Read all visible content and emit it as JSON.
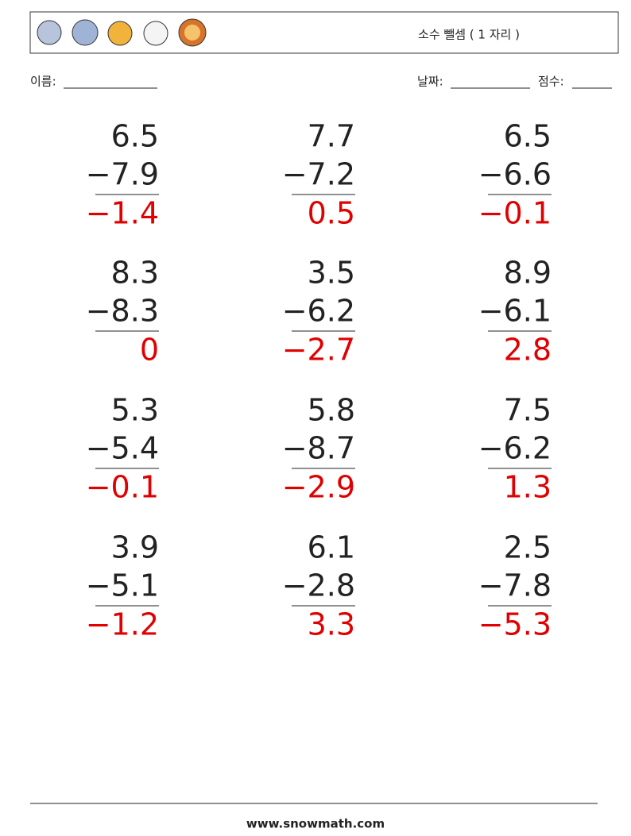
{
  "header": {
    "title": "소수 뺄셈 ( 1 자리 )"
  },
  "fields": {
    "name": "이름:",
    "date": "날짜:",
    "score": "점수:"
  },
  "problems": [
    {
      "top": "6.5",
      "bottom": "−7.9",
      "answer": "−1.4"
    },
    {
      "top": "7.7",
      "bottom": "−7.2",
      "answer": "0.5"
    },
    {
      "top": "6.5",
      "bottom": "−6.6",
      "answer": "−0.1"
    },
    {
      "top": "8.3",
      "bottom": "−8.3",
      "answer": "0"
    },
    {
      "top": "3.5",
      "bottom": "−6.2",
      "answer": "−2.7"
    },
    {
      "top": "8.9",
      "bottom": "−6.1",
      "answer": "2.8"
    },
    {
      "top": "5.3",
      "bottom": "−5.4",
      "answer": "−0.1"
    },
    {
      "top": "5.8",
      "bottom": "−8.7",
      "answer": "−2.9"
    },
    {
      "top": "7.5",
      "bottom": "−6.2",
      "answer": "1.3"
    },
    {
      "top": "3.9",
      "bottom": "−5.1",
      "answer": "−1.2"
    },
    {
      "top": "6.1",
      "bottom": "−2.8",
      "answer": "3.3"
    },
    {
      "top": "2.5",
      "bottom": "−7.8",
      "answer": "−5.3"
    }
  ],
  "footer": {
    "site": "www.snowmath.com"
  }
}
